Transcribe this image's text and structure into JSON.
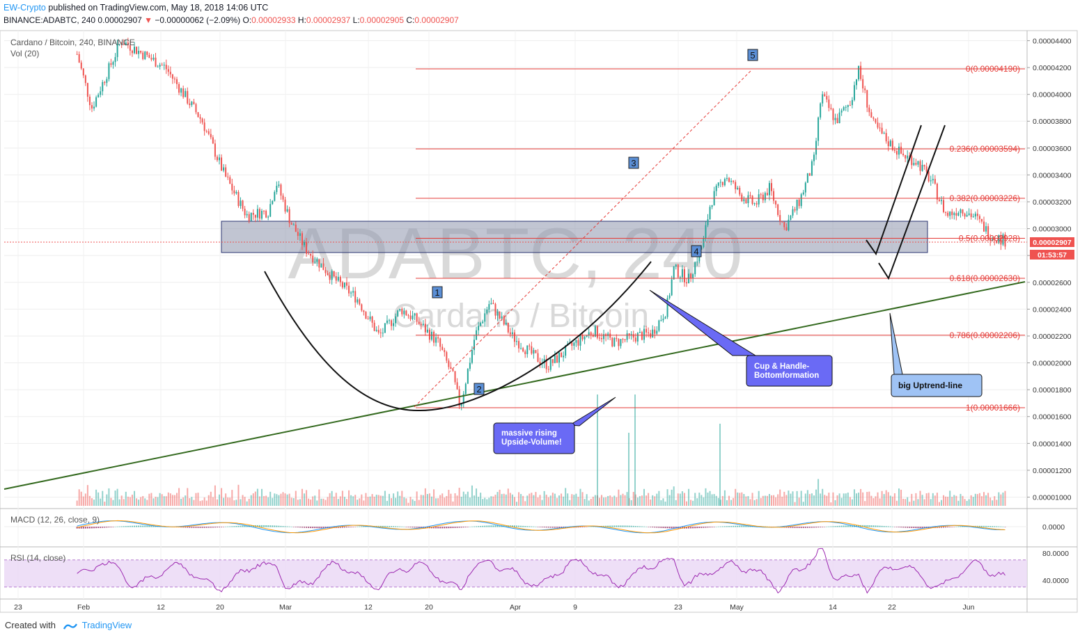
{
  "header": {
    "user": "EW-Crypto",
    "published": "published on TradingView.com, May 18, 2018 14:06 UTC",
    "symbol": "BINANCE:ADABTC, 240",
    "price": "0.00002907",
    "change_arrow": "▼",
    "change": "−0.00000062 (−2.09%)",
    "open_label": "O:",
    "open": "0.00002933",
    "high_label": "H:",
    "high": "0.00002937",
    "low_label": "L:",
    "low": "0.00002905",
    "close_label": "C:",
    "close": "0.00002907"
  },
  "legend": {
    "main": "Cardano / Bitcoin, 240, BINANCE",
    "vol": "Vol (20)",
    "macd": "MACD (12, 26, close, 9)",
    "rsi": "RSI (14, close)"
  },
  "watermark": {
    "big": "ADABTC, 240",
    "small": "Cardano / Bitcoin"
  },
  "footer": {
    "created": "Created with",
    "brand": "TradingView"
  },
  "colors": {
    "up": "#26a69a",
    "down": "#ef5350",
    "fib": "#e53935",
    "zone": "#8e95ad",
    "trend": "#33691e",
    "note_fill": "#6a6af5",
    "note_fill_light": "#9fc3f5",
    "rsi_band": "#ead7f5"
  },
  "chart_data": {
    "type": "candlestick",
    "title": "Cardano / Bitcoin, 240, BINANCE",
    "price_axis_ticks": [
      "0.00004400",
      "0.00004200",
      "0.00004000",
      "0.00003800",
      "0.00003600",
      "0.00003400",
      "0.00003200",
      "0.00003000",
      "0.00002800",
      "0.00002600",
      "0.00002400",
      "0.00002200",
      "0.00002000",
      "0.00001800",
      "0.00001600",
      "0.00001400",
      "0.00001200",
      "0.00001000"
    ],
    "price_axis_ticks_unlabeled": [
      "0.00002800"
    ],
    "macd_axis_ticks": [
      "0.0000"
    ],
    "rsi_axis_ticks": [
      "80.0000",
      "40.0000"
    ],
    "x_ticks": [
      "23",
      "Feb",
      "12",
      "20",
      "Mar",
      "12",
      "20",
      "Apr",
      "9",
      "23",
      "May",
      "14",
      "22",
      "Jun"
    ],
    "last_price_label": "0.00002907",
    "countdown_label": "01:53:57",
    "price_series_approx": [
      [
        "2018-01-31",
        4.3e-05
      ],
      [
        "2018-02-02",
        3.9e-05
      ],
      [
        "2018-02-06",
        4.4e-05
      ],
      [
        "2018-02-12",
        4.2e-05
      ],
      [
        "2018-02-17",
        3.8e-05
      ],
      [
        "2018-02-20",
        3.4e-05
      ],
      [
        "2018-02-23",
        3.1e-05
      ],
      [
        "2018-02-26",
        3.13e-05
      ],
      [
        "2018-02-27",
        3.35e-05
      ],
      [
        "2018-03-01",
        3.05e-05
      ],
      [
        "2018-03-03",
        2.85e-05
      ],
      [
        "2018-03-07",
        2.62e-05
      ],
      [
        "2018-03-10",
        2.48e-05
      ],
      [
        "2018-03-13",
        2.2e-05
      ],
      [
        "2018-03-16",
        2.4e-05
      ],
      [
        "2018-03-18",
        2.32e-05
      ],
      [
        "2018-03-21",
        2.15e-05
      ],
      [
        "2018-03-23",
        1.9e-05
      ],
      [
        "2018-03-24",
        1.67e-05
      ],
      [
        "2018-03-26",
        2.2e-05
      ],
      [
        "2018-03-28",
        2.45e-05
      ],
      [
        "2018-03-31",
        2.2e-05
      ],
      [
        "2018-04-03",
        2.05e-05
      ],
      [
        "2018-04-05",
        1.98e-05
      ],
      [
        "2018-04-08",
        2.12e-05
      ],
      [
        "2018-04-11",
        2.24e-05
      ],
      [
        "2018-04-14",
        2.15e-05
      ],
      [
        "2018-04-17",
        2.2e-05
      ],
      [
        "2018-04-19",
        2.22e-05
      ],
      [
        "2018-04-21",
        2.4e-05
      ],
      [
        "2018-04-22",
        2.7e-05
      ],
      [
        "2018-04-24",
        2.62e-05
      ],
      [
        "2018-04-26",
        2.9e-05
      ],
      [
        "2018-04-27",
        3.2e-05
      ],
      [
        "2018-04-29",
        3.4e-05
      ],
      [
        "2018-05-01",
        3.25e-05
      ],
      [
        "2018-05-03",
        3.18e-05
      ],
      [
        "2018-05-05",
        3.3e-05
      ],
      [
        "2018-05-07",
        3e-05
      ],
      [
        "2018-05-09",
        3.2e-05
      ],
      [
        "2018-05-11",
        3.5e-05
      ],
      [
        "2018-05-12",
        4e-05
      ],
      [
        "2018-05-14",
        3.8e-05
      ],
      [
        "2018-05-16",
        3.95e-05
      ],
      [
        "2018-05-17",
        4.19e-05
      ],
      [
        "2018-05-19",
        3.78e-05
      ],
      [
        "2018-05-21",
        3.65e-05
      ],
      [
        "2018-05-23",
        3.55e-05
      ],
      [
        "2018-05-25",
        3.5e-05
      ],
      [
        "2018-05-27",
        3.35e-05
      ],
      [
        "2018-05-29",
        3.1e-05
      ],
      [
        "2018-05-31",
        3.15e-05
      ],
      [
        "2018-06-02",
        3.08e-05
      ],
      [
        "2018-06-04",
        2.95e-05
      ],
      [
        "2018-06-06",
        2.91e-05
      ]
    ],
    "fibonacci": [
      {
        "ratio": "0",
        "price": "0.00004190"
      },
      {
        "ratio": "0.236",
        "price": "0.00003594"
      },
      {
        "ratio": "0.382",
        "price": "0.00003226"
      },
      {
        "ratio": "0.5",
        "price": "0.00002928"
      },
      {
        "ratio": "0.618",
        "price": "0.00002630"
      },
      {
        "ratio": "0.786",
        "price": "0.00002206"
      },
      {
        "ratio": "1",
        "price": "0.00001666"
      }
    ],
    "support_zone": {
      "top": 3.06e-05,
      "bottom": 2.83e-05
    },
    "wave_labels": [
      "1",
      "2",
      "3",
      "4",
      "5"
    ],
    "annotations": [
      {
        "text_lines": [
          "massive rising",
          "Upside-Volume!"
        ]
      },
      {
        "text_lines": [
          "Cup & Handle-",
          "Bottomformation"
        ]
      },
      {
        "text_lines": [
          "big Uptrend-line"
        ]
      }
    ],
    "legend": [
      "Cardano / Bitcoin, 240, BINANCE",
      "Vol (20)",
      "MACD (12, 26, close, 9)",
      "RSI (14, close)"
    ],
    "grid": true
  }
}
